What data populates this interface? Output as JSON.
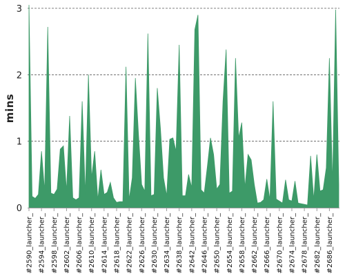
{
  "chart_data": {
    "type": "area",
    "ylabel": "mins",
    "ylim": [
      0,
      3
    ],
    "yticks": [
      0,
      1,
      2,
      3
    ],
    "grid": true,
    "color": "#3d9a68",
    "x_tick_labels": [
      "#2590_launcher_",
      "#2594_launcher_",
      "#2598_launcher_",
      "#2602_launcher_",
      "#2606_launcher_",
      "#2610_launcher_",
      "#2614_launcher_",
      "#2618_launcher_",
      "#2622_launcher_",
      "#2626_launcher_",
      "#2630_launcher_",
      "#2634_launcher_",
      "#2638_launcher_",
      "#2642_launcher_",
      "#2646_launcher_",
      "#2650_launcher_",
      "#2654_launcher_",
      "#2658_launcher_",
      "#2662_launcher_",
      "#2666_launcher_",
      "#2670_launcher_",
      "#2674_launcher_",
      "#2678_launcher_",
      "#2682_launcher_",
      "#2686_launcher_"
    ],
    "x_start": 2590,
    "values": [
      3.05,
      0.17,
      0.14,
      0.2,
      0.85,
      0.25,
      2.72,
      0.22,
      0.2,
      0.28,
      0.88,
      0.93,
      0.25,
      1.38,
      0.15,
      0.12,
      0.15,
      1.6,
      0.2,
      2.0,
      0.45,
      0.85,
      0.12,
      0.57,
      0.2,
      0.23,
      0.38,
      0.15,
      0.08,
      0.09,
      0.09,
      2.12,
      0.12,
      0.45,
      1.95,
      1.1,
      0.35,
      0.25,
      2.62,
      0.18,
      0.2,
      1.8,
      1.2,
      0.45,
      0.18,
      1.03,
      1.05,
      0.85,
      2.45,
      0.18,
      0.18,
      0.5,
      0.3,
      2.68,
      2.9,
      0.27,
      0.22,
      0.62,
      1.05,
      0.8,
      0.28,
      0.35,
      1.6,
      2.38,
      0.22,
      0.25,
      2.25,
      1.05,
      1.28,
      0.3,
      0.8,
      0.72,
      0.35,
      0.07,
      0.08,
      0.12,
      0.43,
      0.12,
      1.6,
      0.13,
      0.1,
      0.07,
      0.42,
      0.12,
      0.1,
      0.4,
      0.07,
      0.06,
      0.05,
      0.04,
      0.78,
      0.12,
      0.8,
      0.25,
      0.27,
      0.6,
      2.25,
      0.35,
      2.98,
      0.35
    ]
  }
}
